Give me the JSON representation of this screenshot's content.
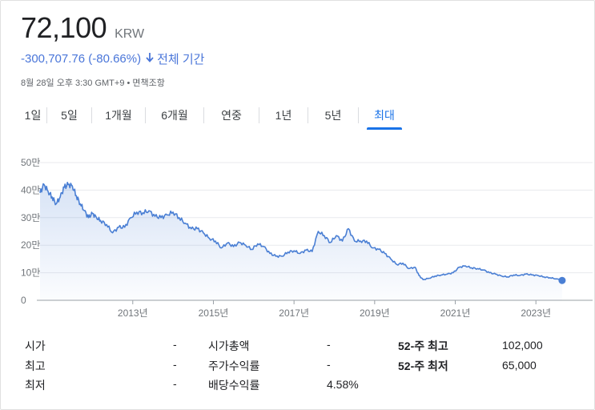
{
  "quote": {
    "price": "72,100",
    "currency": "KRW",
    "change": "-300,707.76 (-80.66%)",
    "change_arrow": "arrow-down-icon",
    "range_label": "전체 기간",
    "timestamp": "8월 28일 오후 3:30 GMT+9 • 면책조항"
  },
  "tabs": [
    {
      "label": "1일",
      "active": false
    },
    {
      "label": "5일",
      "active": false
    },
    {
      "label": "1개월",
      "active": false
    },
    {
      "label": "6개월",
      "active": false
    },
    {
      "label": "연중",
      "active": false
    },
    {
      "label": "1년",
      "active": false
    },
    {
      "label": "5년",
      "active": false
    },
    {
      "label": "최대",
      "active": true
    }
  ],
  "colors": {
    "line": "#4a7fd4",
    "accent": "#1a73e8",
    "change": "#4a76d9"
  },
  "chart_data": {
    "type": "area",
    "y_tick_labels": [
      "0",
      "10만",
      "20만",
      "30만",
      "40만",
      "50만"
    ],
    "y_ticks": [
      0,
      100000,
      200000,
      300000,
      400000,
      500000
    ],
    "ylim": [
      0,
      500000
    ],
    "x_tick_labels": [
      "2013년",
      "2015년",
      "2017년",
      "2019년",
      "2021년",
      "2023년"
    ],
    "x_ticks": [
      2013,
      2015,
      2017,
      2019,
      2021,
      2023
    ],
    "xlim": [
      2010.7,
      2023.85
    ],
    "grid": true,
    "series": [
      {
        "x": [
          2010.7,
          2010.8,
          2010.9,
          2011.0,
          2011.1,
          2011.2,
          2011.3,
          2011.4,
          2011.5,
          2011.6,
          2011.7,
          2011.8,
          2011.9,
          2012.0,
          2012.1,
          2012.2,
          2012.35,
          2012.5,
          2012.65,
          2012.8,
          2012.95,
          2013.1,
          2013.25,
          2013.4,
          2013.55,
          2013.7,
          2013.85,
          2014.0,
          2014.15,
          2014.3,
          2014.45,
          2014.6,
          2014.75,
          2014.9,
          2015.05,
          2015.2,
          2015.35,
          2015.5,
          2015.65,
          2015.8,
          2015.95,
          2016.1,
          2016.25,
          2016.4,
          2016.55,
          2016.7,
          2016.85,
          2017.0,
          2017.15,
          2017.3,
          2017.45,
          2017.6,
          2017.75,
          2017.9,
          2018.05,
          2018.2,
          2018.35,
          2018.5,
          2018.65,
          2018.8,
          2018.95,
          2019.1,
          2019.25,
          2019.4,
          2019.55,
          2019.7,
          2019.85,
          2020.0,
          2020.1,
          2020.2,
          2020.35,
          2020.5,
          2020.65,
          2020.8,
          2020.95,
          2021.1,
          2021.25,
          2021.4,
          2021.55,
          2021.7,
          2021.85,
          2022.0,
          2022.15,
          2022.3,
          2022.45,
          2022.6,
          2022.75,
          2022.9,
          2023.05,
          2023.2,
          2023.35,
          2023.5,
          2023.65
        ],
        "y": [
          390000,
          420000,
          395000,
          375000,
          350000,
          375000,
          410000,
          420000,
          415000,
          380000,
          350000,
          325000,
          300000,
          315000,
          300000,
          290000,
          275000,
          245000,
          265000,
          265000,
          300000,
          320000,
          318000,
          325000,
          305000,
          300000,
          310000,
          320000,
          300000,
          280000,
          260000,
          260000,
          245000,
          225000,
          215000,
          190000,
          208000,
          195000,
          210000,
          200000,
          185000,
          205000,
          195000,
          170000,
          160000,
          160000,
          175000,
          180000,
          170000,
          182000,
          177000,
          250000,
          235000,
          210000,
          235000,
          215000,
          260000,
          215000,
          215000,
          215000,
          190000,
          185000,
          170000,
          150000,
          130000,
          135000,
          115000,
          120000,
          90000,
          75000,
          80000,
          88000,
          92000,
          95000,
          100000,
          120000,
          125000,
          118000,
          115000,
          110000,
          100000,
          95000,
          88000,
          85000,
          92000,
          90000,
          95000,
          92000,
          90000,
          85000,
          82000,
          78000,
          72100
        ]
      }
    ],
    "last_point": {
      "x": 2023.65,
      "y": 72100
    }
  },
  "stats": {
    "rows": [
      [
        {
          "label": "시가",
          "value": "-"
        },
        {
          "label": "시가총액",
          "value": "-"
        },
        {
          "label": "52-주 최고",
          "value": "102,000"
        }
      ],
      [
        {
          "label": "최고",
          "value": "-"
        },
        {
          "label": "주가수익률",
          "value": "-"
        },
        {
          "label": "52-주 최저",
          "value": "65,000"
        }
      ],
      [
        {
          "label": "최저",
          "value": "-"
        },
        {
          "label": "배당수익률",
          "value": "4.58%"
        },
        {
          "label": "",
          "value": ""
        }
      ]
    ]
  }
}
